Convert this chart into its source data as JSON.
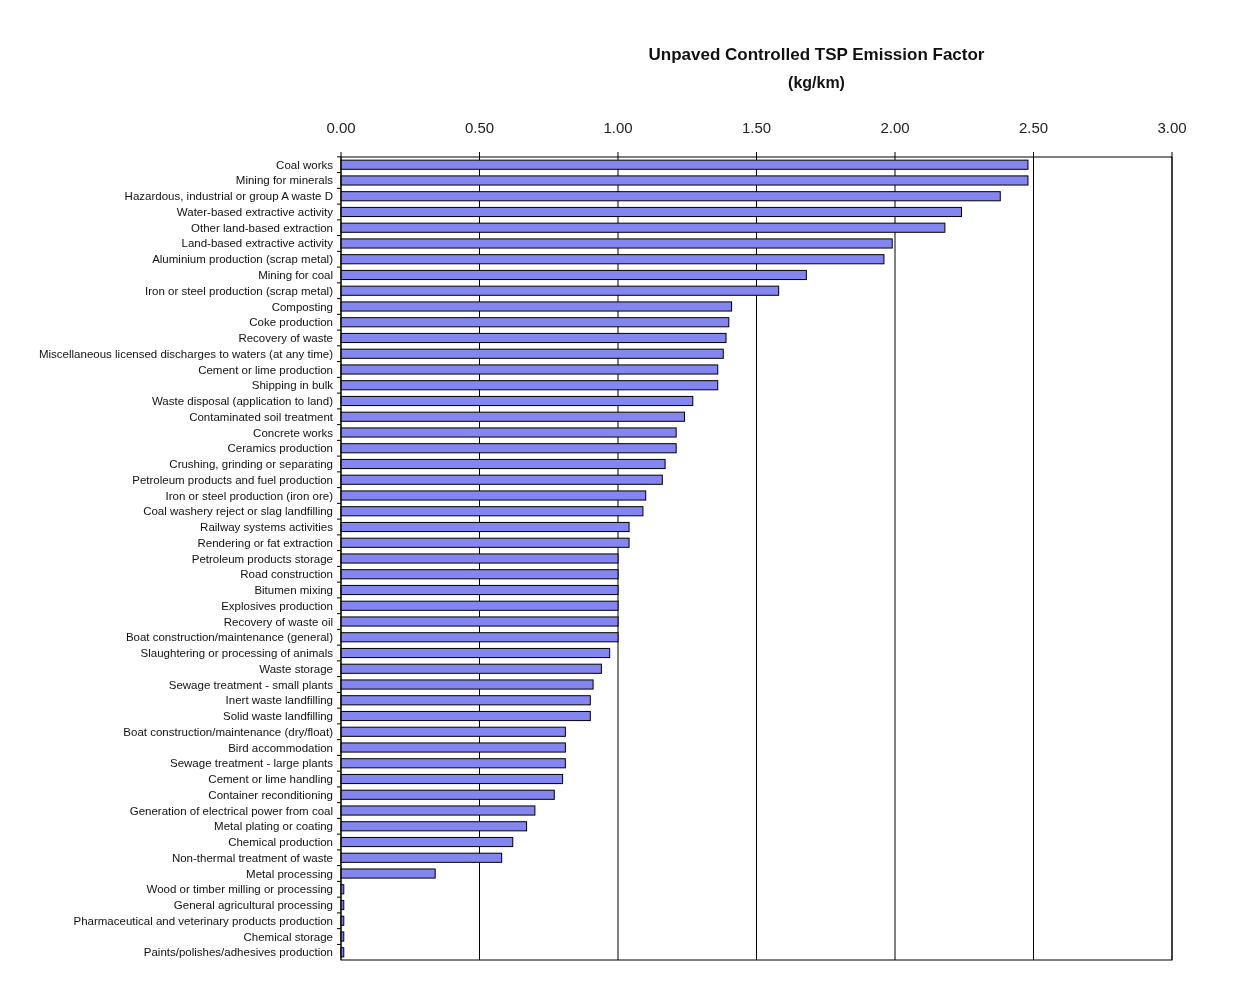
{
  "chart_data": {
    "type": "bar",
    "orientation": "horizontal",
    "title": "Unpaved Controlled TSP Emission Factor",
    "subtitle": "(kg/km)",
    "categories": [
      "Coal works",
      "Mining for minerals",
      "Hazardous, industrial or group A waste D",
      "Water-based extractive activity",
      "Other land-based extraction",
      "Land-based extractive activity",
      "Aluminium production (scrap metal)",
      "Mining for coal",
      "Iron or steel production (scrap metal)",
      "Composting",
      "Coke production",
      "Recovery of waste",
      "Miscellaneous licensed discharges to waters (at any time)",
      "Cement or lime production",
      "Shipping in bulk",
      "Waste disposal (application to land)",
      "Contaminated soil treatment",
      "Concrete works",
      "Ceramics production",
      "Crushing, grinding or separating",
      "Petroleum products and fuel production",
      "Iron or steel production (iron ore)",
      "Coal washery reject or slag landfilling",
      "Railway systems activities",
      "Rendering or fat extraction",
      "Petroleum products storage",
      "Road construction",
      "Bitumen mixing",
      "Explosives production",
      "Recovery of waste oil",
      "Boat construction/maintenance (general)",
      "Slaughtering or processing of animals",
      "Waste storage",
      "Sewage treatment - small plants",
      "Inert waste landfilling",
      "Solid waste landfilling",
      "Boat construction/maintenance (dry/float)",
      "Bird accommodation",
      "Sewage treatment - large plants",
      "Cement or lime handling",
      "Container reconditioning",
      "Generation of electrical power from coal",
      "Metal plating or coating",
      "Chemical production",
      "Non-thermal treatment of waste",
      "Metal processing",
      "Wood or timber milling or processing",
      "General agricultural processing",
      "Pharmaceutical and veterinary products production",
      "Chemical storage",
      "Paints/polishes/adhesives production"
    ],
    "values": [
      2.48,
      2.48,
      2.38,
      2.24,
      2.18,
      1.99,
      1.96,
      1.68,
      1.58,
      1.41,
      1.4,
      1.39,
      1.38,
      1.36,
      1.36,
      1.27,
      1.24,
      1.21,
      1.21,
      1.17,
      1.16,
      1.1,
      1.09,
      1.04,
      1.04,
      1.0,
      1.0,
      1.0,
      1.0,
      1.0,
      1.0,
      0.97,
      0.94,
      0.91,
      0.9,
      0.9,
      0.81,
      0.81,
      0.81,
      0.8,
      0.77,
      0.7,
      0.67,
      0.62,
      0.58,
      0.34,
      0.01,
      0.01,
      0.01,
      0.01,
      0.01
    ],
    "color": "#8585f0",
    "xlim": [
      0,
      3
    ],
    "xticks": [
      {
        "value": 0,
        "label": "0.00"
      },
      {
        "value": 0.5,
        "label": "0.50"
      },
      {
        "value": 1,
        "label": "1.00"
      },
      {
        "value": 1.5,
        "label": "1.50"
      },
      {
        "value": 2,
        "label": "2.00"
      },
      {
        "value": 2.5,
        "label": "2.50"
      },
      {
        "value": 3,
        "label": "3.00"
      }
    ],
    "grid": "x"
  }
}
